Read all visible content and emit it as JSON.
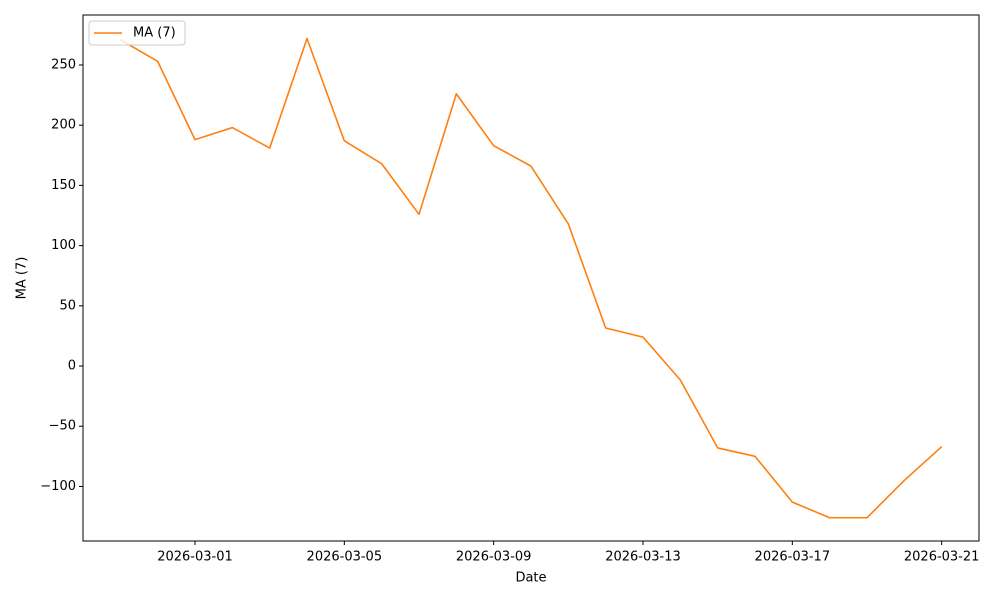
{
  "chart_data": {
    "type": "line",
    "x": [
      "2026-02-27",
      "2026-02-28",
      "2026-03-01",
      "2026-03-02",
      "2026-03-03",
      "2026-03-04",
      "2026-03-05",
      "2026-03-06",
      "2026-03-07",
      "2026-03-08",
      "2026-03-09",
      "2026-03-10",
      "2026-03-11",
      "2026-03-12",
      "2026-03-13",
      "2026-03-14",
      "2026-03-15",
      "2026-03-16",
      "2026-03-17",
      "2026-03-18",
      "2026-03-19",
      "2026-03-20",
      "2026-03-21"
    ],
    "series": [
      {
        "name": "MA (7)",
        "color": "#ff7f0e",
        "values": [
          271,
          253,
          188,
          198,
          181,
          272,
          187,
          168,
          126,
          226,
          183,
          166,
          118,
          31.6,
          24,
          -11.6,
          -68,
          -75,
          -113,
          -126,
          -126,
          -95,
          -67
        ]
      }
    ],
    "xlabel": "Date",
    "ylabel": "MA (7)",
    "xlim": [
      "2026-02-26",
      "2026-03-22"
    ],
    "xticks": [
      "2026-03-01",
      "2026-03-05",
      "2026-03-09",
      "2026-03-13",
      "2026-03-17",
      "2026-03-21"
    ],
    "ylim": [
      -145.3,
      291.5
    ],
    "yticks": [
      {
        "value": -100,
        "label": "−100"
      },
      {
        "value": -50,
        "label": "−50"
      },
      0,
      50,
      100,
      150,
      200,
      250
    ],
    "legend": "upper left"
  }
}
